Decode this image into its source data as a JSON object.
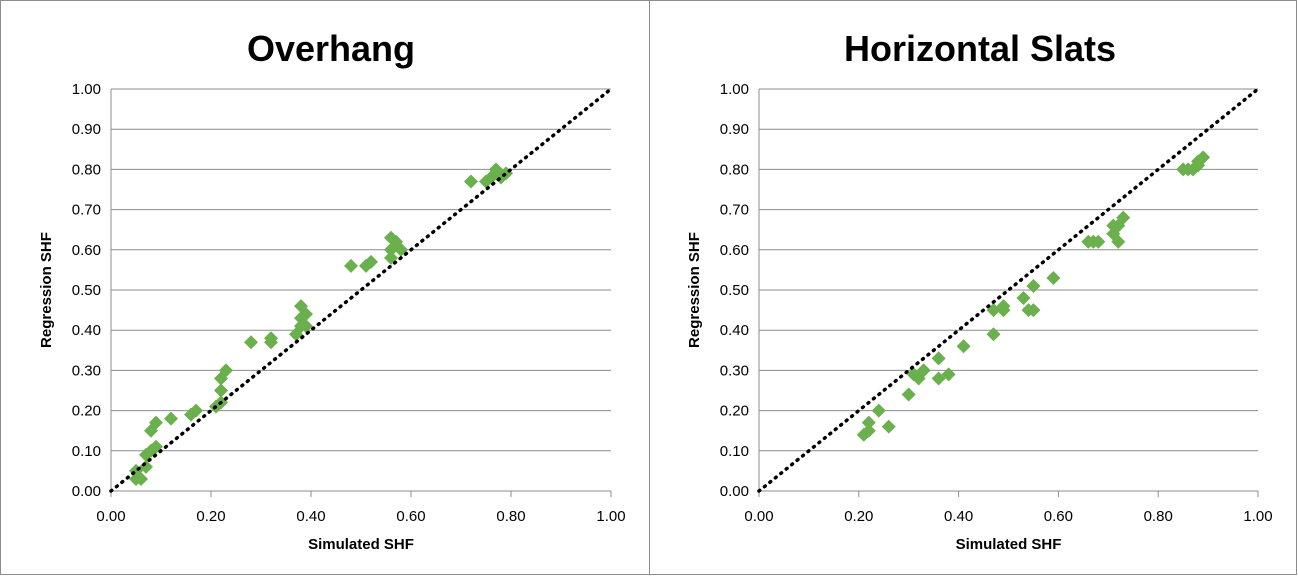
{
  "chart_data": [
    {
      "type": "scatter",
      "title": "Overhang",
      "xlabel": "Simulated SHF",
      "ylabel": "Regression SHF",
      "xlim": [
        0,
        1
      ],
      "ylim": [
        0,
        1
      ],
      "x_ticks": [
        "0.00",
        "0.20",
        "0.40",
        "0.60",
        "0.80",
        "1.00"
      ],
      "y_ticks": [
        "0.00",
        "0.10",
        "0.20",
        "0.30",
        "0.40",
        "0.50",
        "0.60",
        "0.70",
        "0.80",
        "0.90",
        "1.00"
      ],
      "grid": "horizontal",
      "marker": "diamond",
      "marker_color": "#6ab04c",
      "reference_line": {
        "style": "dotted",
        "color": "#000000",
        "from": [
          0,
          0
        ],
        "to": [
          1,
          1
        ]
      },
      "series": [
        {
          "x": [
            0.05,
            0.06,
            0.05,
            0.07,
            0.08,
            0.07,
            0.09,
            0.08,
            0.09,
            0.12,
            0.16,
            0.17,
            0.21,
            0.22,
            0.22,
            0.22,
            0.23,
            0.28,
            0.32,
            0.32,
            0.37,
            0.38,
            0.38,
            0.38,
            0.39,
            0.39,
            0.48,
            0.51,
            0.52,
            0.56,
            0.56,
            0.57,
            0.56,
            0.58,
            0.72,
            0.75,
            0.76,
            0.77,
            0.77,
            0.78,
            0.79
          ],
          "y": [
            0.03,
            0.03,
            0.05,
            0.06,
            0.1,
            0.09,
            0.11,
            0.15,
            0.17,
            0.18,
            0.19,
            0.2,
            0.21,
            0.22,
            0.25,
            0.28,
            0.3,
            0.37,
            0.37,
            0.38,
            0.39,
            0.41,
            0.43,
            0.46,
            0.44,
            0.41,
            0.56,
            0.56,
            0.57,
            0.58,
            0.6,
            0.62,
            0.63,
            0.6,
            0.77,
            0.77,
            0.78,
            0.79,
            0.8,
            0.78,
            0.79
          ]
        }
      ]
    },
    {
      "type": "scatter",
      "title": "Horizontal Slats",
      "xlabel": "Simulated SHF",
      "ylabel": "Regression SHF",
      "xlim": [
        0,
        1
      ],
      "ylim": [
        0,
        1
      ],
      "x_ticks": [
        "0.00",
        "0.20",
        "0.40",
        "0.60",
        "0.80",
        "1.00"
      ],
      "y_ticks": [
        "0.00",
        "0.10",
        "0.20",
        "0.30",
        "0.40",
        "0.50",
        "0.60",
        "0.70",
        "0.80",
        "0.90",
        "1.00"
      ],
      "grid": "horizontal",
      "marker": "diamond",
      "marker_color": "#6ab04c",
      "reference_line": {
        "style": "dotted",
        "color": "#000000",
        "from": [
          0,
          0
        ],
        "to": [
          1,
          1
        ]
      },
      "series": [
        {
          "x": [
            0.21,
            0.22,
            0.22,
            0.24,
            0.26,
            0.3,
            0.31,
            0.32,
            0.33,
            0.36,
            0.36,
            0.38,
            0.41,
            0.47,
            0.47,
            0.49,
            0.49,
            0.53,
            0.54,
            0.55,
            0.55,
            0.59,
            0.66,
            0.67,
            0.68,
            0.71,
            0.71,
            0.72,
            0.72,
            0.73,
            0.85,
            0.86,
            0.87,
            0.88,
            0.88,
            0.89
          ],
          "y": [
            0.14,
            0.15,
            0.17,
            0.2,
            0.16,
            0.24,
            0.29,
            0.28,
            0.3,
            0.28,
            0.33,
            0.29,
            0.36,
            0.39,
            0.45,
            0.45,
            0.46,
            0.48,
            0.45,
            0.45,
            0.51,
            0.53,
            0.62,
            0.62,
            0.62,
            0.64,
            0.66,
            0.62,
            0.66,
            0.68,
            0.8,
            0.8,
            0.8,
            0.81,
            0.82,
            0.83
          ]
        }
      ]
    }
  ]
}
